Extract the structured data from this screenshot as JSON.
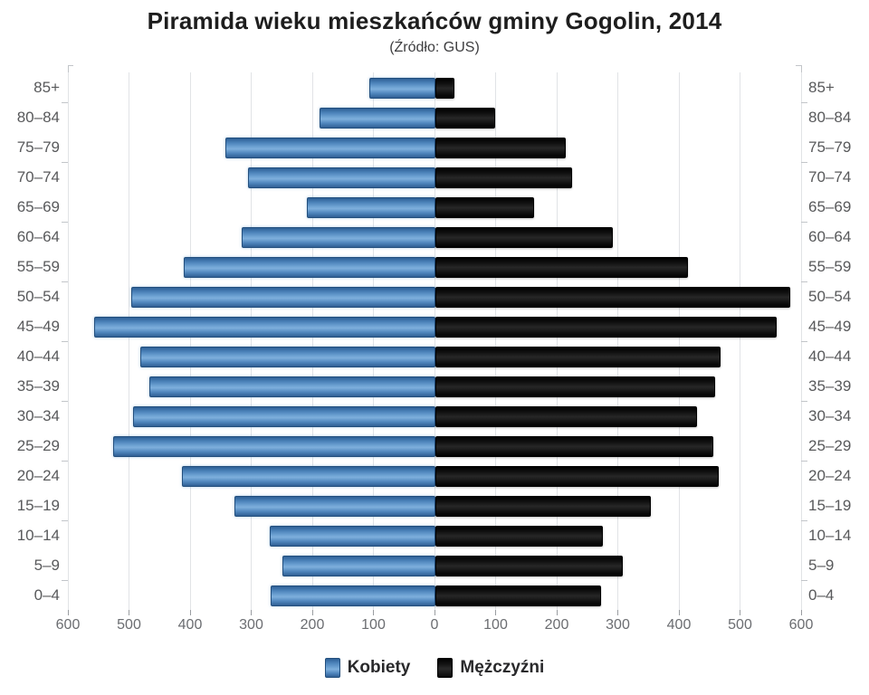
{
  "title": "Piramida wieku mieszkańców gminy Gogolin, 2014",
  "subtitle": "(Źródło: GUS)",
  "legend": {
    "women": "Kobiety",
    "men": "Mężczyźni"
  },
  "colors": {
    "women_bar": "#4f86bd",
    "men_bar": "#111111",
    "gridline": "#e1e3e6",
    "category_label": "#58595b",
    "axis_number": "#6b6d71"
  },
  "x_axis": {
    "tick_labels": [
      "600",
      "500",
      "400",
      "300",
      "200",
      "100",
      "0",
      "100",
      "200",
      "300",
      "400",
      "500",
      "600"
    ],
    "max_per_side": 600,
    "step": 100
  },
  "chart_data": {
    "type": "bar",
    "variant": "population-pyramid",
    "title": "Piramida wieku mieszkańców gminy Gogolin, 2014",
    "subtitle": "(Źródło: GUS)",
    "categories": [
      "85+",
      "80–84",
      "75–79",
      "70–74",
      "65–69",
      "60–64",
      "55–59",
      "50–54",
      "45–49",
      "40–44",
      "35–39",
      "30–34",
      "25–29",
      "20–24",
      "15–19",
      "10–14",
      "5–9",
      "0–4"
    ],
    "series": [
      {
        "name": "Kobiety",
        "side": "left",
        "color": "#4f86bd",
        "values": [
          105,
          187,
          341,
          304,
          207,
          314,
          409,
          495,
          555,
          480,
          465,
          492,
          524,
          412,
          326,
          268,
          248,
          266
        ]
      },
      {
        "name": "Mężczyźni",
        "side": "right",
        "color": "#111111",
        "values": [
          28,
          95,
          210,
          221,
          158,
          287,
          410,
          578,
          556,
          464,
          455,
          425,
          452,
          460,
          349,
          271,
          303,
          268
        ]
      }
    ],
    "xlim": [
      0,
      600
    ],
    "grid": true,
    "legend_position": "bottom"
  }
}
